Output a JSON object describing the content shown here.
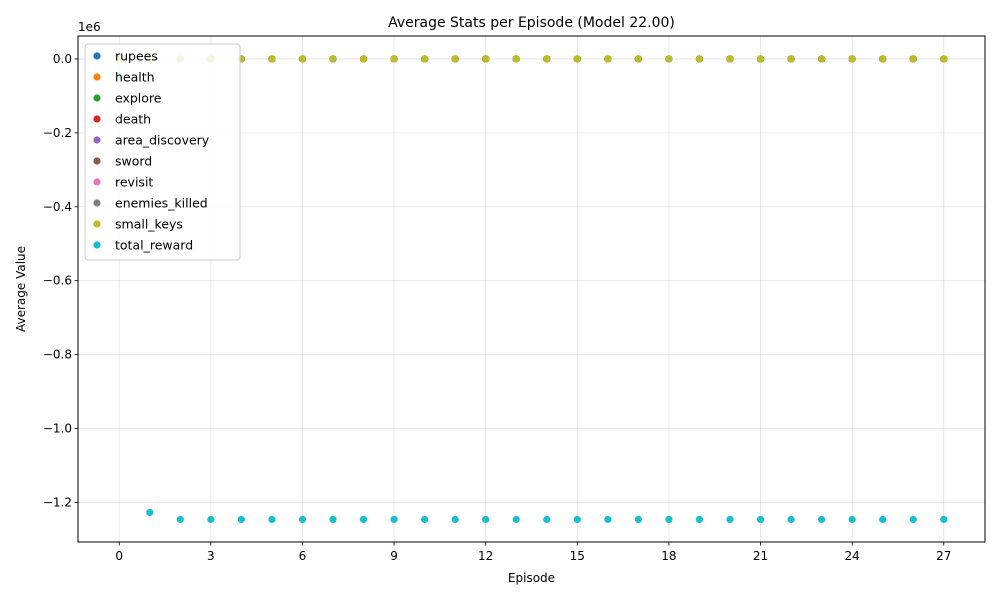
{
  "chart_data": {
    "type": "scatter",
    "title": "Average Stats per Episode (Model 22.00)",
    "xlabel": "Episode",
    "ylabel": "Average Value",
    "y_offset_label": "1e6",
    "y_scale": 1000000,
    "xlim": [
      -1.35,
      28.35
    ],
    "ylim": [
      -1307000,
      62000
    ],
    "x_ticks": [
      0,
      3,
      6,
      9,
      12,
      15,
      18,
      21,
      24,
      27
    ],
    "x_tick_labels": [
      "0",
      "3",
      "6",
      "9",
      "12",
      "15",
      "18",
      "21",
      "24",
      "27"
    ],
    "y_ticks": [
      -1200000,
      -1000000,
      -800000,
      -600000,
      -400000,
      -200000,
      0
    ],
    "y_tick_labels": [
      "−1.2",
      "−1.0",
      "−0.8",
      "−0.6",
      "−0.4",
      "−0.2",
      "0.0"
    ],
    "grid": true,
    "legend_position": "upper-left",
    "x": [
      0,
      1,
      2,
      3,
      4,
      5,
      6,
      7,
      8,
      9,
      10,
      11,
      12,
      13,
      14,
      15,
      16,
      17,
      18,
      19,
      20,
      21,
      22,
      23,
      24,
      25,
      26,
      27
    ],
    "series": [
      {
        "name": "rupees",
        "color": "#1f77b4",
        "values": [
          0,
          0,
          0,
          0,
          0,
          0,
          0,
          0,
          0,
          0,
          0,
          0,
          0,
          0,
          0,
          0,
          0,
          0,
          0,
          0,
          0,
          0,
          0,
          0,
          0,
          0,
          0,
          0
        ]
      },
      {
        "name": "health",
        "color": "#ff7f0e",
        "values": [
          3,
          3,
          3,
          3,
          3,
          3,
          3,
          3,
          3,
          3,
          3,
          3,
          3,
          3,
          3,
          3,
          3,
          3,
          3,
          3,
          3,
          3,
          3,
          3,
          3,
          3,
          3,
          3
        ]
      },
      {
        "name": "explore",
        "color": "#2ca02c",
        "values": [
          0,
          0,
          0,
          0,
          0,
          0,
          0,
          0,
          0,
          0,
          0,
          0,
          0,
          0,
          0,
          0,
          0,
          0,
          0,
          0,
          0,
          0,
          0,
          0,
          0,
          0,
          0,
          0
        ]
      },
      {
        "name": "death",
        "color": "#d62728",
        "values": [
          0,
          0,
          0,
          0,
          0,
          0,
          0,
          0,
          0,
          0,
          0,
          0,
          0,
          0,
          0,
          0,
          0,
          0,
          0,
          0,
          0,
          0,
          0,
          0,
          0,
          0,
          0,
          0
        ]
      },
      {
        "name": "area_discovery",
        "color": "#9467bd",
        "values": [
          0,
          0,
          0,
          0,
          0,
          0,
          0,
          0,
          0,
          0,
          0,
          0,
          0,
          0,
          0,
          0,
          0,
          0,
          0,
          0,
          0,
          0,
          0,
          0,
          0,
          0,
          0,
          0
        ]
      },
      {
        "name": "sword",
        "color": "#8c564b",
        "values": [
          0,
          0,
          0,
          0,
          0,
          0,
          0,
          0,
          0,
          0,
          0,
          0,
          0,
          0,
          0,
          0,
          0,
          0,
          0,
          0,
          0,
          0,
          0,
          0,
          0,
          0,
          0,
          0
        ]
      },
      {
        "name": "revisit",
        "color": "#e377c2",
        "values": [
          0,
          0,
          0,
          0,
          0,
          0,
          0,
          0,
          0,
          0,
          0,
          0,
          0,
          0,
          0,
          0,
          0,
          0,
          0,
          0,
          0,
          0,
          0,
          0,
          0,
          0,
          0,
          0
        ]
      },
      {
        "name": "enemies_killed",
        "color": "#7f7f7f",
        "values": [
          0,
          0,
          0,
          0,
          0,
          0,
          0,
          0,
          0,
          0,
          0,
          0,
          0,
          0,
          0,
          0,
          0,
          0,
          0,
          0,
          0,
          0,
          0,
          0,
          0,
          0,
          0,
          0
        ]
      },
      {
        "name": "small_keys",
        "color": "#bcbd22",
        "values": [
          0,
          0,
          0,
          0,
          0,
          0,
          0,
          0,
          0,
          0,
          0,
          0,
          0,
          0,
          0,
          0,
          0,
          0,
          0,
          0,
          0,
          0,
          0,
          0,
          0,
          0,
          0,
          0
        ]
      },
      {
        "name": "total_reward",
        "color": "#17becf",
        "values": [
          -45000,
          -1227000,
          -1246000,
          -1246000,
          -1246000,
          -1246000,
          -1246000,
          -1246000,
          -1246000,
          -1246000,
          -1246000,
          -1246000,
          -1246000,
          -1246000,
          -1246000,
          -1246000,
          -1246000,
          -1246000,
          -1246000,
          -1246000,
          -1246000,
          -1246000,
          -1246000,
          -1246000,
          -1246000,
          -1246000,
          -1246000,
          -1246000
        ]
      }
    ]
  }
}
